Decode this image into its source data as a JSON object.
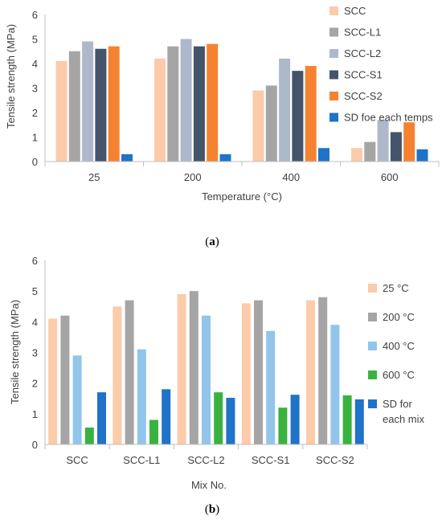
{
  "colors": {
    "axis": "#bfbfbf",
    "text": "#404040"
  },
  "chart_data": [
    {
      "type": "bar",
      "caption_open": "(",
      "caption_letter": "a",
      "caption_close": ")",
      "title": "",
      "xlabel": "Temperature (°C)",
      "ylabel": "Tensile strength (MPa)",
      "ylim": [
        0,
        6
      ],
      "yticks": [
        "0",
        "1",
        "2",
        "3",
        "4",
        "5",
        "6"
      ],
      "categories": [
        "25",
        "200",
        "400",
        "600"
      ],
      "legend_placement": "right",
      "grid": false,
      "series": [
        {
          "name": "SCC",
          "color": "#fbcbaa",
          "values": [
            4.1,
            4.2,
            2.9,
            0.55
          ]
        },
        {
          "name": "SCC-L1",
          "color": "#a5a5a5",
          "values": [
            4.5,
            4.7,
            3.1,
            0.8
          ]
        },
        {
          "name": "SCC-L2",
          "color": "#adb9ca",
          "values": [
            4.9,
            5.0,
            4.2,
            1.7
          ]
        },
        {
          "name": "SCC-S1",
          "color": "#44546a",
          "values": [
            4.6,
            4.7,
            3.7,
            1.2
          ]
        },
        {
          "name": "SCC-S2",
          "color": "#f58231",
          "values": [
            4.7,
            4.8,
            3.9,
            1.6
          ]
        },
        {
          "name": "SD foe each temps",
          "color": "#1f73c8",
          "values": [
            0.3,
            0.3,
            0.55,
            0.5
          ]
        }
      ]
    },
    {
      "type": "bar",
      "caption_open": "(",
      "caption_letter": "b",
      "caption_close": ")",
      "title": "",
      "xlabel": "Mix No.",
      "ylabel": "Tensile strength (MPa)",
      "ylim": [
        0,
        6
      ],
      "yticks": [
        "0",
        "1",
        "2",
        "3",
        "4",
        "5",
        "6"
      ],
      "categories": [
        "SCC",
        "SCC-L1",
        "SCC-L2",
        "SCC-S1",
        "SCC-S2"
      ],
      "legend_placement": "right",
      "grid": false,
      "series": [
        {
          "name": "25 °C",
          "color": "#fbcbaa",
          "values": [
            4.1,
            4.5,
            4.9,
            4.6,
            4.7
          ]
        },
        {
          "name": "200  °C",
          "color": "#a5a5a5",
          "values": [
            4.2,
            4.7,
            5.0,
            4.7,
            4.8
          ]
        },
        {
          "name": "400 °C",
          "color": "#92c5ea",
          "values": [
            2.9,
            3.1,
            4.2,
            3.7,
            3.9
          ]
        },
        {
          "name": "600 °C",
          "color": "#3ab23f",
          "values": [
            0.55,
            0.8,
            1.7,
            1.2,
            1.6
          ]
        },
        {
          "name": "SD for each mix",
          "color": "#1f73c8",
          "values": [
            1.7,
            1.8,
            1.52,
            1.62,
            1.47
          ]
        }
      ]
    }
  ]
}
